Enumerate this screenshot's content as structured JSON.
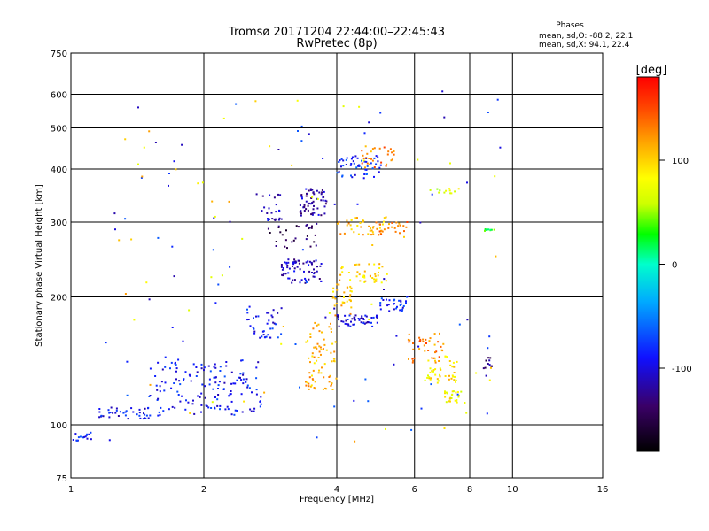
{
  "chart_data": {
    "type": "scatter",
    "title": "Tromsø 20171204 22:44:00–22:45:43",
    "subtitle": "RwPretec (8p)",
    "xlabel": "Frequency [MHz]",
    "ylabel": "Stationary phase Virtual Height [km]",
    "x_scale": "log2",
    "y_scale": "log",
    "xlim": [
      1,
      16
    ],
    "ylim": [
      75,
      750
    ],
    "x_ticks": [
      "1",
      "2",
      "4",
      "6",
      "8",
      "10",
      "16"
    ],
    "x_tick_values": [
      1,
      2,
      4,
      6,
      8,
      10,
      16
    ],
    "y_ticks": [
      "750",
      "600",
      "500",
      "400",
      "300",
      "200",
      "100",
      "75"
    ],
    "y_tick_values": [
      750,
      600,
      500,
      400,
      300,
      200,
      100,
      75
    ],
    "grid": true,
    "phases_box": {
      "heading": "Phases",
      "line1": "mean, sd,O: -88.2, 22.1",
      "line2": "mean, sd,X:  94.1, 22.4"
    },
    "colorbar": {
      "label": "[deg]",
      "range": [
        -180,
        180
      ],
      "tick_labels": [
        "100",
        "0",
        "-100"
      ],
      "tick_values": [
        100,
        0,
        -100
      ],
      "colors": [
        "#000000",
        "#3a0066",
        "#1010ff",
        "#00aaff",
        "#00ffcc",
        "#00ff00",
        "#ccff00",
        "#ffff00",
        "#ffaa00",
        "#ff4400",
        "#ff0000"
      ]
    },
    "clusters": [
      {
        "f": [
          1.0,
          1.12
        ],
        "h": [
          91,
          96
        ],
        "phase": -85,
        "n": 16
      },
      {
        "f": [
          1.15,
          1.5
        ],
        "h": [
          103,
          110
        ],
        "phase": -95,
        "n": 38
      },
      {
        "f": [
          1.5,
          2.7
        ],
        "h": [
          105,
          145
        ],
        "phase": -90,
        "n": 150
      },
      {
        "f": [
          2.5,
          3.0
        ],
        "h": [
          160,
          190
        ],
        "phase": -90,
        "n": 40
      },
      {
        "f": [
          2.7,
          3.0
        ],
        "h": [
          300,
          350
        ],
        "phase": -105,
        "n": 22
      },
      {
        "f": [
          2.8,
          3.6
        ],
        "h": [
          260,
          300
        ],
        "phase": -140,
        "n": 30
      },
      {
        "f": [
          3.0,
          3.7
        ],
        "h": [
          215,
          245
        ],
        "phase": -110,
        "n": 70
      },
      {
        "f": [
          3.3,
          3.8
        ],
        "h": [
          310,
          360
        ],
        "phase": -115,
        "n": 60
      },
      {
        "f": [
          3.4,
          4.0
        ],
        "h": [
          120,
          175
        ],
        "phase": 110,
        "n": 80
      },
      {
        "f": [
          3.9,
          4.4
        ],
        "h": [
          180,
          240
        ],
        "phase": 105,
        "n": 40
      },
      {
        "f": [
          4.0,
          5.0
        ],
        "h": [
          170,
          182
        ],
        "phase": -100,
        "n": 50
      },
      {
        "f": [
          4.0,
          5.0
        ],
        "h": [
          380,
          430
        ],
        "phase": -80,
        "n": 50
      },
      {
        "f": [
          4.5,
          5.4
        ],
        "h": [
          400,
          460
        ],
        "phase": 130,
        "n": 30
      },
      {
        "f": [
          4.0,
          5.2
        ],
        "h": [
          280,
          310
        ],
        "phase": 115,
        "n": 40
      },
      {
        "f": [
          5.0,
          5.8
        ],
        "h": [
          185,
          200
        ],
        "phase": -85,
        "n": 30
      },
      {
        "f": [
          4.3,
          5.2
        ],
        "h": [
          215,
          240
        ],
        "phase": 100,
        "n": 35
      },
      {
        "f": [
          4.8,
          5.8
        ],
        "h": [
          280,
          300
        ],
        "phase": 130,
        "n": 25
      },
      {
        "f": [
          5.8,
          7.0
        ],
        "h": [
          140,
          165
        ],
        "phase": 130,
        "n": 40
      },
      {
        "f": [
          6.3,
          7.5
        ],
        "h": [
          125,
          145
        ],
        "phase": 90,
        "n": 45
      },
      {
        "f": [
          7.0,
          7.8
        ],
        "h": [
          112,
          120
        ],
        "phase": 80,
        "n": 25
      },
      {
        "f": [
          8.6,
          9.0
        ],
        "h": [
          135,
          145
        ],
        "phase": -130,
        "n": 10
      },
      {
        "f": [
          6.5,
          7.8
        ],
        "h": [
          350,
          360
        ],
        "phase": 70,
        "n": 12
      },
      {
        "f": [
          8.6,
          9.2
        ],
        "h": [
          285,
          290
        ],
        "phase": 30,
        "n": 10
      }
    ],
    "scattered_points": 140
  }
}
